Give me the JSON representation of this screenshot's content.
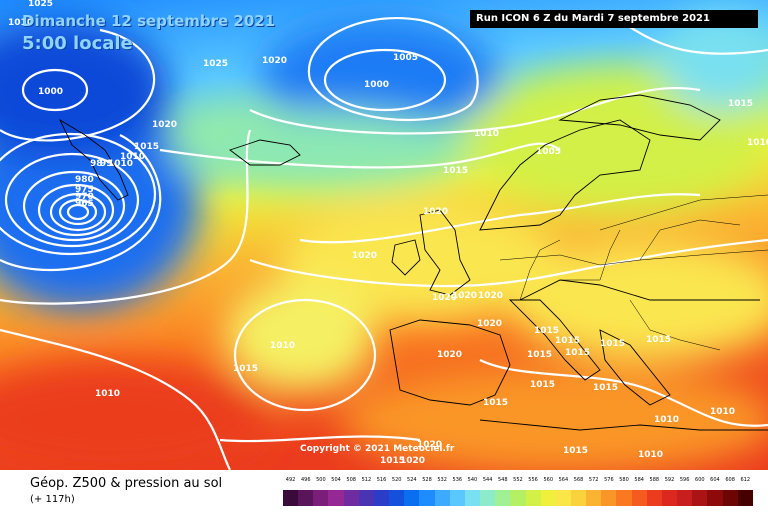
{
  "header": {
    "date": "Dimanche 12 septembre 2021",
    "time": "5:00 locale",
    "run": "Run ICON 6 Z du Mardi 7 septembre 2021"
  },
  "copyright": "Copyright © 2021 Meteociel.fr",
  "footer": {
    "title": "Géop. Z500 & pression au sol",
    "subtitle": "(+ 117h)"
  },
  "legend": {
    "labels": [
      "492",
      "496",
      "500",
      "504",
      "508",
      "512",
      "516",
      "520",
      "524",
      "528",
      "532",
      "536",
      "540",
      "544",
      "548",
      "552",
      "556",
      "560",
      "564",
      "568",
      "572",
      "576",
      "580",
      "584",
      "588",
      "592",
      "596",
      "600",
      "604",
      "608",
      "612"
    ],
    "colors": [
      "#3a0a3a",
      "#5a145a",
      "#7a1e7a",
      "#962896",
      "#6e2ca0",
      "#4a34b4",
      "#2a3cc8",
      "#1450dc",
      "#0a6ef0",
      "#1e8cff",
      "#3caaff",
      "#5ac8ff",
      "#78e0f0",
      "#8cebc8",
      "#a0f096",
      "#b4f064",
      "#d2f046",
      "#f0f03c",
      "#fae646",
      "#fad23c",
      "#fab432",
      "#fa9628",
      "#fa7820",
      "#f55a1e",
      "#eb3c1e",
      "#dc281e",
      "#c81e1e",
      "#aa1414",
      "#8c0a0a",
      "#6e0505",
      "#460000"
    ]
  },
  "isobar_labels": [
    "1025",
    "1025",
    "1020",
    "1005",
    "1000",
    "1000",
    "1015",
    "1020",
    "1015",
    "1010",
    "1010",
    "1010",
    "1010",
    "98",
    "99",
    "980",
    "975",
    "970",
    "965",
    "1005",
    "1015",
    "1020",
    "1020",
    "1020",
    "1020",
    "1020",
    "1020",
    "1015",
    "1015",
    "1015",
    "1015",
    "1015",
    "1015",
    "1015",
    "1015",
    "1015",
    "1015",
    "1010",
    "1010",
    "1010",
    "1020",
    "1010",
    "1010",
    "1015",
    "1010",
    "1020",
    "1015",
    "1020"
  ]
}
